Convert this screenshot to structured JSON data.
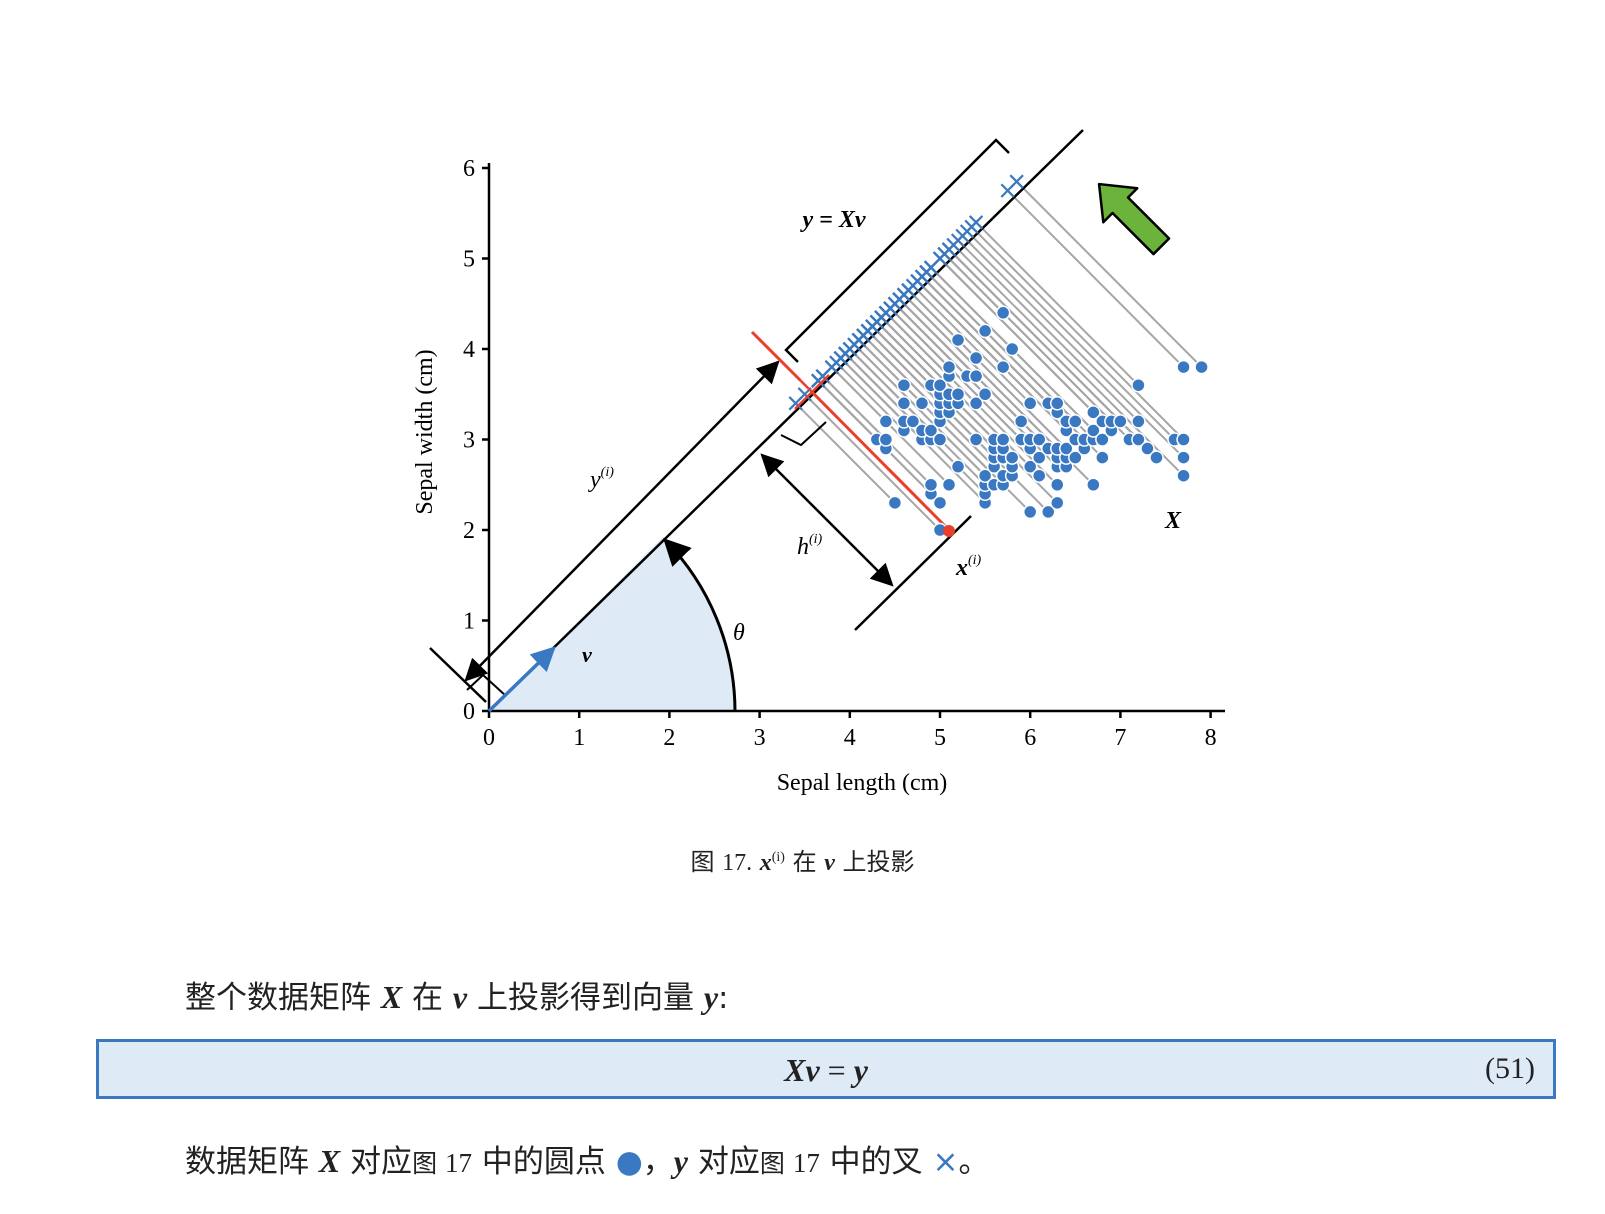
{
  "figure": {
    "x_axis_label": "Sepal length (cm)",
    "y_axis_label": "Sepal width (cm)",
    "x_ticks": [
      "0",
      "1",
      "2",
      "3",
      "4",
      "5",
      "6",
      "7",
      "8"
    ],
    "y_ticks": [
      "0",
      "1",
      "2",
      "3",
      "4",
      "5",
      "6"
    ],
    "label_y_eq_Xv": "y = Xv",
    "label_v": "v",
    "label_theta": "θ",
    "label_y_i": "y",
    "label_h_i": "h",
    "label_x_i": "x",
    "label_X": "X",
    "superscript_i": "(i)",
    "colors": {
      "points": "#3a78c2",
      "projection_lines": "#a6a6a6",
      "highlight": "#e8402a",
      "arrow_green": "#6bb33a",
      "theta_fill": "#deebf7"
    }
  },
  "chart_data": {
    "type": "scatter",
    "xlabel": "Sepal length (cm)",
    "ylabel": "Sepal width (cm)",
    "xlim": [
      0,
      8
    ],
    "ylim": [
      0,
      6
    ],
    "direction_v_angle_deg": 45,
    "highlight_point": [
      5.0,
      2.0
    ],
    "highlight_projection": [
      3.5,
      3.5
    ],
    "points": [
      [
        4.5,
        2.3
      ],
      [
        4.4,
        2.9
      ],
      [
        4.3,
        3.0
      ],
      [
        4.4,
        3.0
      ],
      [
        4.4,
        3.2
      ],
      [
        4.6,
        3.1
      ],
      [
        4.6,
        3.2
      ],
      [
        4.6,
        3.4
      ],
      [
        4.6,
        3.6
      ],
      [
        4.7,
        3.2
      ],
      [
        4.8,
        3.0
      ],
      [
        4.8,
        3.1
      ],
      [
        4.8,
        3.4
      ],
      [
        4.9,
        2.4
      ],
      [
        4.9,
        2.5
      ],
      [
        4.9,
        3.0
      ],
      [
        4.9,
        3.1
      ],
      [
        4.9,
        3.6
      ],
      [
        5.0,
        2.0
      ],
      [
        5.0,
        2.3
      ],
      [
        5.0,
        3.0
      ],
      [
        5.0,
        3.2
      ],
      [
        5.0,
        3.3
      ],
      [
        5.0,
        3.4
      ],
      [
        5.0,
        3.5
      ],
      [
        5.0,
        3.6
      ],
      [
        5.1,
        2.5
      ],
      [
        5.1,
        3.3
      ],
      [
        5.1,
        3.4
      ],
      [
        5.1,
        3.5
      ],
      [
        5.1,
        3.7
      ],
      [
        5.1,
        3.8
      ],
      [
        5.2,
        2.7
      ],
      [
        5.2,
        3.4
      ],
      [
        5.2,
        3.5
      ],
      [
        5.2,
        4.1
      ],
      [
        5.3,
        3.7
      ],
      [
        5.4,
        3.0
      ],
      [
        5.4,
        3.4
      ],
      [
        5.4,
        3.7
      ],
      [
        5.4,
        3.9
      ],
      [
        5.5,
        2.3
      ],
      [
        5.5,
        2.4
      ],
      [
        5.5,
        2.5
      ],
      [
        5.5,
        2.6
      ],
      [
        5.5,
        3.5
      ],
      [
        5.5,
        4.2
      ],
      [
        5.6,
        2.5
      ],
      [
        5.6,
        2.7
      ],
      [
        5.6,
        2.8
      ],
      [
        5.6,
        2.9
      ],
      [
        5.6,
        3.0
      ],
      [
        5.7,
        2.5
      ],
      [
        5.7,
        2.6
      ],
      [
        5.7,
        2.8
      ],
      [
        5.7,
        2.9
      ],
      [
        5.7,
        3.0
      ],
      [
        5.7,
        3.8
      ],
      [
        5.7,
        4.4
      ],
      [
        5.8,
        2.6
      ],
      [
        5.8,
        2.7
      ],
      [
        5.8,
        2.8
      ],
      [
        5.8,
        4.0
      ],
      [
        5.9,
        3.0
      ],
      [
        5.9,
        3.2
      ],
      [
        6.0,
        2.2
      ],
      [
        6.0,
        2.7
      ],
      [
        6.0,
        2.9
      ],
      [
        6.0,
        3.0
      ],
      [
        6.0,
        3.4
      ],
      [
        6.1,
        2.6
      ],
      [
        6.1,
        2.8
      ],
      [
        6.1,
        3.0
      ],
      [
        6.2,
        2.2
      ],
      [
        6.2,
        2.9
      ],
      [
        6.2,
        3.4
      ],
      [
        6.3,
        2.3
      ],
      [
        6.3,
        2.5
      ],
      [
        6.3,
        2.7
      ],
      [
        6.3,
        2.8
      ],
      [
        6.3,
        2.9
      ],
      [
        6.3,
        3.3
      ],
      [
        6.3,
        3.4
      ],
      [
        6.4,
        2.7
      ],
      [
        6.4,
        2.8
      ],
      [
        6.4,
        2.9
      ],
      [
        6.4,
        3.1
      ],
      [
        6.4,
        3.2
      ],
      [
        6.5,
        2.8
      ],
      [
        6.5,
        3.0
      ],
      [
        6.5,
        3.2
      ],
      [
        6.6,
        2.9
      ],
      [
        6.6,
        3.0
      ],
      [
        6.7,
        2.5
      ],
      [
        6.7,
        3.0
      ],
      [
        6.7,
        3.1
      ],
      [
        6.7,
        3.3
      ],
      [
        6.8,
        2.8
      ],
      [
        6.8,
        3.0
      ],
      [
        6.8,
        3.2
      ],
      [
        6.9,
        3.1
      ],
      [
        6.9,
        3.2
      ],
      [
        7.0,
        3.2
      ],
      [
        7.1,
        3.0
      ],
      [
        7.2,
        3.0
      ],
      [
        7.2,
        3.2
      ],
      [
        7.2,
        3.6
      ],
      [
        7.3,
        2.9
      ],
      [
        7.4,
        2.8
      ],
      [
        7.6,
        3.0
      ],
      [
        7.7,
        2.6
      ],
      [
        7.7,
        2.8
      ],
      [
        7.7,
        3.0
      ],
      [
        7.7,
        3.8
      ],
      [
        7.9,
        3.8
      ]
    ]
  },
  "caption": {
    "prefix": "图 ",
    "number": "17.",
    "x_bold": "x",
    "sup": "(i)",
    "mid": " 在 ",
    "v_bold": "v",
    "suffix": " 上投影"
  },
  "paragraph1": {
    "t1": "整个数据矩阵 ",
    "X": "X",
    "t2": " 在 ",
    "v": "v",
    "t3": " 上投影得到向量 ",
    "y": "y",
    "t4": ":"
  },
  "equation": {
    "lhs": "Xv",
    "op": " = ",
    "rhs": "y",
    "number": "(51)"
  },
  "paragraph2": {
    "t1": "数据矩阵 ",
    "X": "X",
    "t2": " 对应",
    "fig1": "图 ",
    "num1": "17",
    "t3": " 中的圆点 ",
    "dot": "●",
    "t4": "，",
    "y": "y",
    "t5": " 对应",
    "fig2": "图 ",
    "num2": "17",
    "t6": " 中的叉 ",
    "cross": "×",
    "t7": "。"
  }
}
